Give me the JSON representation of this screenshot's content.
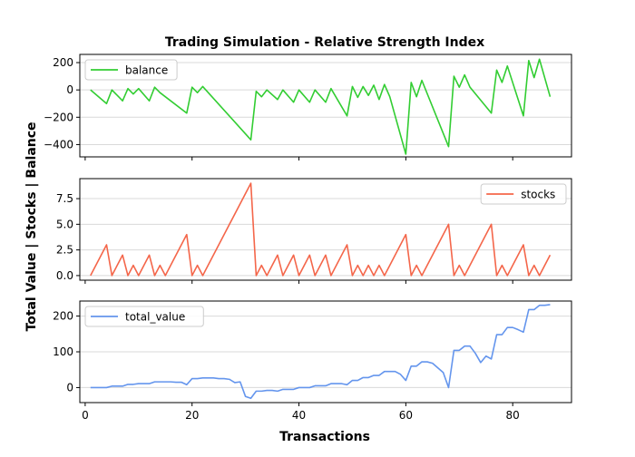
{
  "chart_data": {
    "type": "line",
    "title": "Trading Simulation - Relative Strength Index",
    "xlabel": "Transactions",
    "ylabel": "Total Value | Stocks | Balance",
    "grid": "horizontal",
    "xlim": [
      -1,
      91
    ],
    "xticks": [
      "0",
      "20",
      "40",
      "60",
      "80"
    ],
    "panels": [
      {
        "name": "balance",
        "color": "#32CD32",
        "legend": "balance",
        "legend_loc": "upper left",
        "ylim": [
          -490,
          260
        ],
        "yticks": [
          "200",
          "0",
          "−200",
          "−400"
        ],
        "ytick_values": [
          200,
          0,
          -200,
          -400
        ],
        "x": [
          1,
          4,
          5,
          7,
          8,
          9,
          10,
          12,
          13,
          14,
          19,
          20,
          21,
          22,
          31,
          32,
          33,
          34,
          36,
          37,
          39,
          40,
          42,
          43,
          45,
          46,
          49,
          50,
          51,
          52,
          53,
          54,
          55,
          56,
          57,
          60,
          61,
          62,
          63,
          68,
          69,
          70,
          71,
          72,
          76,
          77,
          78,
          79,
          82,
          83,
          84,
          85,
          87
        ],
        "y": [
          0,
          -100,
          0,
          -80,
          10,
          -30,
          10,
          -80,
          20,
          -20,
          -170,
          20,
          -20,
          25,
          -365,
          -10,
          -50,
          0,
          -70,
          0,
          -90,
          0,
          -90,
          0,
          -90,
          10,
          -190,
          25,
          -55,
          25,
          -40,
          35,
          -70,
          40,
          -50,
          -470,
          55,
          -50,
          70,
          -415,
          100,
          20,
          110,
          20,
          -170,
          145,
          55,
          175,
          -190,
          215,
          90,
          225,
          -50
        ]
      },
      {
        "name": "stocks",
        "color": "#F4664A",
        "legend": "stocks",
        "legend_loc": "upper right",
        "ylim": [
          -0.45,
          9.45
        ],
        "yticks": [
          "0.0",
          "2.5",
          "5.0",
          "7.5"
        ],
        "ytick_values": [
          0,
          2.5,
          5.0,
          7.5
        ],
        "x": [
          1,
          4,
          5,
          7,
          8,
          9,
          10,
          12,
          13,
          14,
          15,
          19,
          20,
          21,
          22,
          31,
          32,
          33,
          34,
          36,
          37,
          39,
          40,
          42,
          43,
          45,
          46,
          49,
          50,
          51,
          52,
          53,
          54,
          55,
          56,
          57,
          60,
          61,
          62,
          63,
          68,
          69,
          70,
          71,
          76,
          77,
          78,
          79,
          82,
          83,
          84,
          85,
          87
        ],
        "y": [
          0,
          3,
          0,
          2,
          0,
          1,
          0,
          2,
          0,
          1,
          0,
          4,
          0,
          1,
          0,
          9,
          0,
          1,
          0,
          2,
          0,
          2,
          0,
          2,
          0,
          2,
          0,
          3,
          0,
          1,
          0,
          1,
          0,
          1,
          0,
          1,
          4,
          0,
          1,
          0,
          5,
          0,
          1,
          0,
          5,
          0,
          1,
          0,
          3,
          0,
          1,
          0,
          2
        ]
      },
      {
        "name": "total_value",
        "color": "#6495ED",
        "legend": "total_value",
        "legend_loc": "upper left",
        "ylim": [
          -42,
          242
        ],
        "yticks": [
          "200",
          "100",
          "0"
        ],
        "ytick_values": [
          200,
          100,
          0
        ],
        "x": [
          1,
          2,
          3,
          4,
          5,
          6,
          7,
          8,
          9,
          10,
          11,
          12,
          13,
          14,
          15,
          16,
          17,
          18,
          19,
          20,
          21,
          22,
          23,
          24,
          25,
          26,
          27,
          28,
          29,
          30,
          31,
          32,
          33,
          34,
          35,
          36,
          37,
          38,
          39,
          40,
          41,
          42,
          43,
          44,
          45,
          46,
          47,
          48,
          49,
          50,
          51,
          52,
          53,
          54,
          55,
          56,
          57,
          58,
          59,
          60,
          61,
          62,
          63,
          64,
          65,
          66,
          67,
          68,
          69,
          70,
          71,
          72,
          73,
          74,
          75,
          76,
          77,
          78,
          79,
          80,
          81,
          82,
          83,
          84,
          85,
          86,
          87
        ],
        "y": [
          0,
          0,
          0,
          0,
          4,
          4,
          4,
          9,
          9,
          11,
          11,
          11,
          16,
          16,
          16,
          16,
          15,
          15,
          8,
          25,
          25,
          27,
          27,
          27,
          25,
          25,
          23,
          14,
          16,
          -25,
          -30,
          -10,
          -10,
          -8,
          -8,
          -10,
          -5,
          -5,
          -5,
          0,
          0,
          0,
          5,
          5,
          5,
          11,
          11,
          11,
          8,
          20,
          20,
          28,
          28,
          34,
          34,
          45,
          45,
          45,
          37,
          20,
          60,
          60,
          72,
          72,
          68,
          55,
          42,
          0,
          104,
          104,
          116,
          116,
          96,
          70,
          88,
          80,
          148,
          148,
          168,
          168,
          162,
          155,
          218,
          218,
          230,
          230,
          232
        ]
      }
    ]
  }
}
